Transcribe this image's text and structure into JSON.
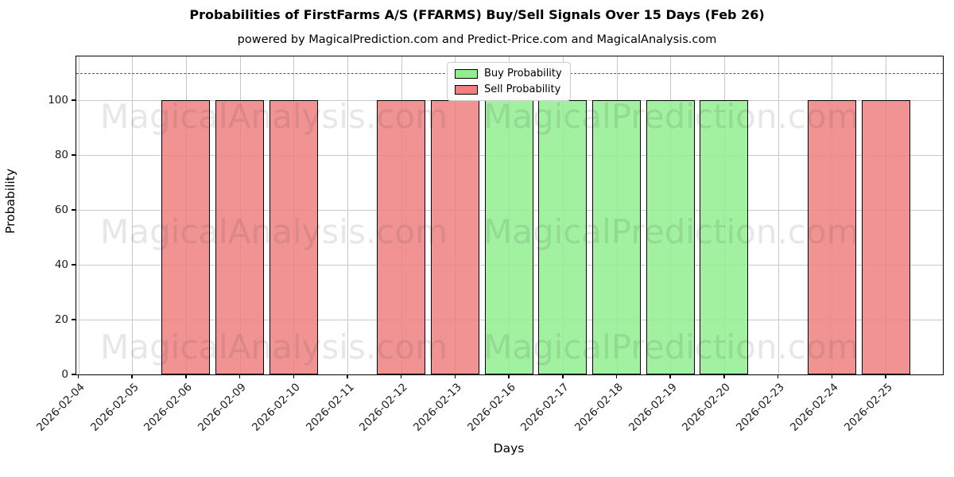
{
  "chart_data": {
    "type": "bar",
    "title": "Probabilities of FirstFarms A/S (FFARMS) Buy/Sell Signals Over 15 Days (Feb 26)",
    "subtitle": "powered by MagicalPrediction.com and Predict-Price.com and MagicalAnalysis.com",
    "xlabel": "Days",
    "ylabel": "Probability",
    "categories": [
      "2026-02-04",
      "2026-02-05",
      "2026-02-06",
      "2026-02-09",
      "2026-02-10",
      "2026-02-11",
      "2026-02-12",
      "2026-02-13",
      "2026-02-16",
      "2026-02-17",
      "2026-02-18",
      "2026-02-19",
      "2026-02-20",
      "2026-02-23",
      "2026-02-24",
      "2026-02-25"
    ],
    "series": [
      {
        "name": "Buy Probability",
        "color": "#90EE90",
        "values": [
          0,
          0,
          0,
          0,
          0,
          0,
          0,
          0,
          100,
          100,
          100,
          100,
          100,
          0,
          0,
          0
        ]
      },
      {
        "name": "Sell Probability",
        "color": "#F08080",
        "values": [
          0,
          0,
          100,
          100,
          100,
          0,
          100,
          100,
          0,
          0,
          0,
          0,
          0,
          0,
          100,
          100
        ]
      }
    ],
    "yticks": [
      0,
      20,
      40,
      60,
      80,
      100
    ],
    "ylim": [
      0,
      116
    ],
    "dashed_line_y": 110,
    "grid": true,
    "legend_position": "top-center",
    "bar_edge_color": "#000000",
    "grid_color": "#c9c9c9",
    "dashed_line_color": "#595959",
    "watermark_left": "MagicalAnalysis.com",
    "watermark_right": "MagicalPrediction.com"
  }
}
